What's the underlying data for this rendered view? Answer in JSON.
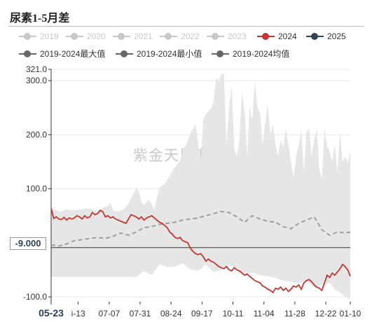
{
  "title": "尿素1-5月差",
  "watermark": "紫金天风期货",
  "pointer_label": "-9.000",
  "legend": [
    {
      "name": "2019",
      "color": "#c8c8c8",
      "active": false
    },
    {
      "name": "2020",
      "color": "#c8c8c8",
      "active": false
    },
    {
      "name": "2021",
      "color": "#c8c8c8",
      "active": false
    },
    {
      "name": "2022",
      "color": "#c8c8c8",
      "active": false
    },
    {
      "name": "2023",
      "color": "#c8c8c8",
      "active": false
    },
    {
      "name": "2024",
      "color": "#c23531",
      "active": true
    },
    {
      "name": "2025",
      "color": "#2f4554",
      "active": true
    },
    {
      "name": "2019-2024最大值",
      "color": "#666666",
      "active": true
    },
    {
      "name": "2019-2024最小值",
      "color": "#666666",
      "active": true
    },
    {
      "name": "2019-2024均值",
      "color": "#666666",
      "active": true
    }
  ],
  "chart_data": {
    "type": "line",
    "title": "尿素1-5月差",
    "x_ticks": [
      "05-23",
      "i-13",
      "07-07",
      "07-31",
      "08-24",
      "09-17",
      "10-11",
      "11-04",
      "11-28",
      "12-22",
      "01-10"
    ],
    "x_ticks_positions_days": [
      0,
      21,
      45,
      69,
      93,
      117,
      141,
      165,
      189,
      213,
      232
    ],
    "x_range_days": [
      0,
      232
    ],
    "y_ticks": [
      "321.0",
      "300.0",
      "200.0",
      "100.0",
      "-100.0"
    ],
    "y_range": [
      -109,
      321
    ],
    "grid": true,
    "series": [
      {
        "name": "2019-2024最大值",
        "style": "filled area upper bound",
        "x": [
          0,
          4,
          8,
          12,
          16,
          20,
          24,
          26,
          28,
          32,
          36,
          40,
          44,
          46,
          48,
          52,
          56,
          60,
          64,
          66,
          68,
          70,
          72,
          76,
          80,
          84,
          88,
          92,
          96,
          100,
          104,
          108,
          112,
          116,
          118,
          120,
          122,
          124,
          126,
          128,
          130,
          132,
          134,
          136,
          138,
          140,
          142,
          144,
          146,
          148,
          150,
          152,
          154,
          156,
          158,
          160,
          162,
          164,
          166,
          168,
          170,
          172,
          174,
          176,
          178,
          180,
          182,
          184,
          186,
          188,
          190,
          192,
          194,
          196,
          198,
          200,
          202,
          204,
          206,
          208,
          210,
          212,
          214,
          216,
          218,
          220,
          222,
          224,
          226,
          228,
          230,
          232
        ],
        "y": [
          62,
          60,
          58,
          62,
          60,
          61,
          62,
          63,
          64,
          62,
          58,
          65,
          68,
          74,
          60,
          58,
          62,
          72,
          92,
          100,
          95,
          76,
          70,
          80,
          62,
          103,
          108,
          125,
          140,
          152,
          178,
          202,
          220,
          150,
          228,
          238,
          244,
          248,
          262,
          305,
          300,
          312,
          314,
          180,
          250,
          290,
          175,
          160,
          190,
          280,
          242,
          160,
          250,
          226,
          300,
          250,
          240,
          180,
          220,
          258,
          200,
          218,
          180,
          160,
          190,
          176,
          210,
          182,
          150,
          120,
          160,
          180,
          210,
          130,
          205,
          212,
          160,
          190,
          210,
          135,
          120,
          210,
          180,
          168,
          150,
          185,
          130,
          205,
          150,
          160,
          148,
          170
        ]
      },
      {
        "name": "2019-2024最小值",
        "style": "filled area lower bound",
        "x": [
          0,
          6,
          12,
          18,
          24,
          30,
          36,
          42,
          48,
          54,
          60,
          66,
          72,
          78,
          84,
          90,
          96,
          102,
          108,
          114,
          120,
          126,
          132,
          138,
          144,
          150,
          156,
          162,
          168,
          174,
          180,
          186,
          192,
          198,
          204,
          210,
          216,
          220,
          224,
          228,
          232
        ],
        "y": [
          -63,
          -63,
          -63,
          -63,
          -63,
          -63,
          -63,
          -63,
          -63,
          -63,
          -63,
          -63,
          -52,
          -60,
          -40,
          -45,
          -44,
          -38,
          -50,
          -52,
          -40,
          -55,
          -50,
          -42,
          -48,
          -58,
          -55,
          -60,
          -62,
          -65,
          -70,
          -72,
          -75,
          -70,
          -82,
          -78,
          -74,
          -86,
          -92,
          -100,
          -104
        ]
      },
      {
        "name": "2024",
        "color": "#c23531",
        "x": [
          0,
          2,
          4,
          6,
          8,
          10,
          12,
          14,
          16,
          18,
          20,
          22,
          24,
          26,
          28,
          30,
          32,
          34,
          36,
          38,
          40,
          42,
          44,
          46,
          48,
          50,
          52,
          54,
          56,
          58,
          60,
          62,
          64,
          66,
          68,
          70,
          72,
          74,
          76,
          78,
          80,
          82,
          84,
          86,
          88,
          90,
          92,
          94,
          96,
          98,
          100,
          102,
          104,
          106,
          108,
          110,
          112,
          114,
          116,
          118,
          120,
          122,
          124,
          126,
          128,
          130,
          132,
          134,
          136,
          138,
          140,
          142,
          144,
          146,
          148,
          150,
          152,
          154,
          156,
          158,
          160,
          162,
          164,
          166,
          168,
          170,
          172,
          174,
          176,
          178,
          180,
          182,
          184,
          186,
          188,
          190,
          192,
          194,
          196,
          198,
          200,
          202,
          204,
          206,
          208,
          210,
          212,
          214,
          216,
          218,
          220,
          222,
          224,
          226,
          228,
          230,
          232
        ],
        "y": [
          64,
          45,
          48,
          44,
          43,
          47,
          42,
          46,
          44,
          46,
          50,
          48,
          44,
          50,
          46,
          48,
          56,
          52,
          54,
          60,
          58,
          48,
          50,
          46,
          48,
          44,
          42,
          40,
          38,
          36,
          44,
          52,
          50,
          48,
          44,
          48,
          42,
          46,
          48,
          50,
          46,
          42,
          38,
          36,
          32,
          28,
          20,
          16,
          10,
          8,
          10,
          4,
          2,
          0,
          -10,
          -16,
          -20,
          -22,
          -20,
          -26,
          -34,
          -30,
          -34,
          -36,
          -40,
          -44,
          -46,
          -48,
          -44,
          -50,
          -52,
          -46,
          -50,
          -52,
          -56,
          -60,
          -58,
          -62,
          -66,
          -70,
          -72,
          -74,
          -80,
          -82,
          -86,
          -88,
          -92,
          -84,
          -86,
          -82,
          -88,
          -84,
          -90,
          -86,
          -80,
          -82,
          -78,
          -86,
          -74,
          -70,
          -68,
          -72,
          -78,
          -82,
          -84,
          -88,
          -74,
          -60,
          -64,
          -56,
          -60,
          -54,
          -48,
          -40,
          -44,
          -50,
          -62
        ]
      },
      {
        "name": "2019-2024均值",
        "style": "dashed",
        "color": "#9e9e9e",
        "x": [
          0,
          6,
          12,
          18,
          24,
          30,
          36,
          42,
          48,
          54,
          60,
          66,
          72,
          78,
          84,
          90,
          96,
          102,
          108,
          114,
          120,
          126,
          132,
          138,
          144,
          150,
          156,
          162,
          168,
          174,
          180,
          186,
          192,
          198,
          204,
          210,
          216,
          222,
          228,
          232
        ],
        "y": [
          -4,
          -6,
          -2,
          4,
          6,
          8,
          10,
          8,
          12,
          18,
          14,
          20,
          28,
          30,
          34,
          36,
          38,
          42,
          44,
          46,
          50,
          54,
          58,
          56,
          48,
          38,
          50,
          44,
          40,
          38,
          30,
          26,
          36,
          42,
          48,
          24,
          14,
          20,
          18,
          20
        ]
      }
    ]
  }
}
